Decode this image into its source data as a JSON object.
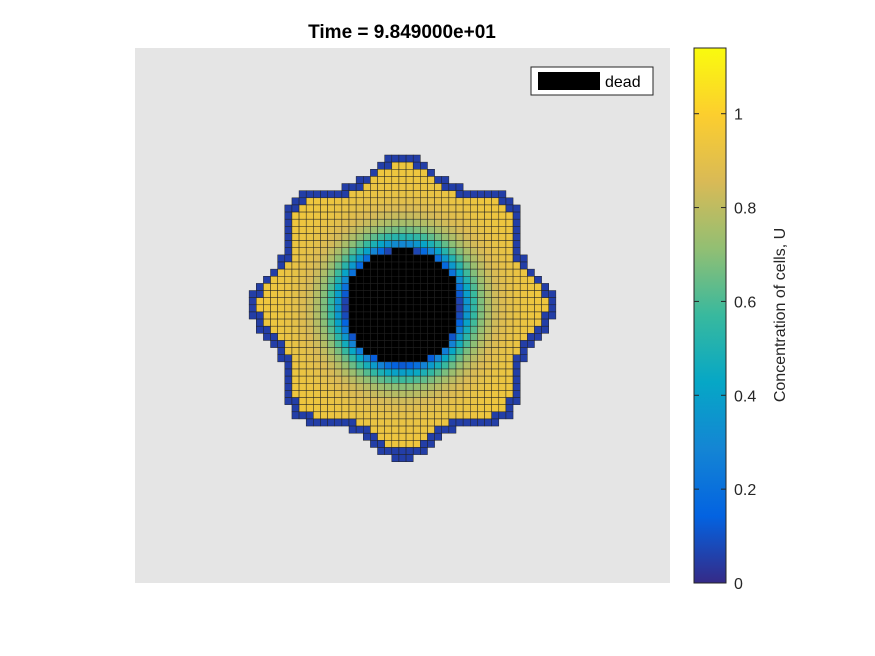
{
  "chart_data": {
    "type": "heatmap",
    "title": "Time = 9.849000e+01",
    "axes_visible": false,
    "background_color": "#e5e5e5",
    "grid_size": 75,
    "tissue": {
      "outer_radius_cells": 20,
      "lobe_count": 8,
      "lobe_amplitude_cells": 1.4,
      "necrotic_radius_cells": 8,
      "boundary_band_cells": 1.3,
      "plateau_value": 0.95,
      "edge_value": 0.05,
      "transition_width_cells": 2.5
    },
    "legend": {
      "entries": [
        {
          "label": "dead",
          "color": "#000000"
        }
      ],
      "location": "top-right"
    },
    "colorbar": {
      "label": "Concentration of cells, U",
      "range": [
        0,
        1.14
      ],
      "ticks": [
        "0",
        "0.2",
        "0.4",
        "0.6",
        "0.8",
        "1"
      ],
      "tick_values": [
        0,
        0.2,
        0.4,
        0.6,
        0.8,
        1
      ],
      "colormap": "parula"
    }
  }
}
